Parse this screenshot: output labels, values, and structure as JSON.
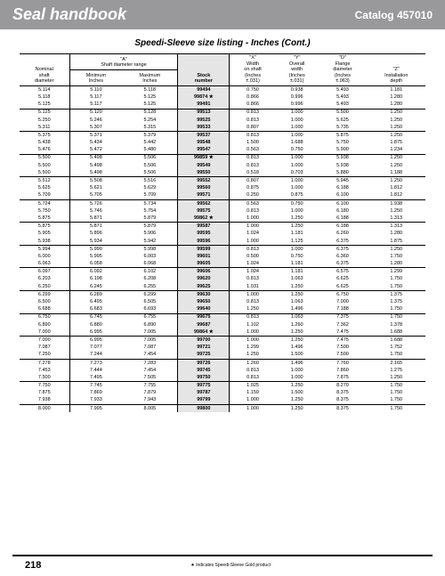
{
  "header": {
    "title": "Seal handbook",
    "catalog": "Catalog 457010"
  },
  "subtitle": "Speedi-Sleeve size listing - Inches (Cont.)",
  "footer": {
    "page": "218",
    "note": "★  Indicates Speedi-Sleeve Gold product"
  },
  "columns": {
    "nominal": "Nominal\nshaft\ndiameter",
    "range": "\"A\"\nShaft diameter range",
    "min": "Minimum\nInches",
    "max": "Maximum\nInches",
    "stock": "Stock\nnumber",
    "x": "\"X\"\nWidth\non shaft\n(Inches\n±.031)",
    "y": "\"Y\"\nOverall\nwidth\n(Inches\n±.031)",
    "d": "\"D\"\nFlange\ndiameter\n(Inches\n±.063)",
    "z": "\"Z\"\nInstallation\ndepth"
  },
  "groups": [
    [
      [
        "5.114",
        "5.110",
        "5.118",
        "99494",
        "0.750",
        "0.938",
        "5.493",
        "1.181"
      ],
      [
        "5.118",
        "5.117",
        "5.125",
        "99874 ★",
        "0.866",
        "0.996",
        "5.493",
        "1.280"
      ],
      [
        "5.125",
        "5.117",
        "5.125",
        "99491",
        "0.866",
        "0.996",
        "5.493",
        "1.280"
      ]
    ],
    [
      [
        "5.125",
        "5.120",
        "5.128",
        "99513",
        "0.813",
        "1.000",
        "5.500",
        "1.250"
      ],
      [
        "5.250",
        "5.246",
        "5.254",
        "99525",
        "0.813",
        "1.000",
        "5.625",
        "1.250"
      ],
      [
        "5.311",
        "5.307",
        "5.315",
        "99533",
        "0.807",
        "1.000",
        "5.735",
        "1.250"
      ]
    ],
    [
      [
        "5.375",
        "5.371",
        "5.379",
        "99537",
        "0.813",
        "1.000",
        "5.875",
        "1.250"
      ],
      [
        "5.438",
        "5.434",
        "5.442",
        "99548",
        "1.500",
        "1.688",
        "5.750",
        "1.875"
      ],
      [
        "5.476",
        "5.472",
        "5.480",
        "99547",
        "0.563",
        "0.750",
        "5.900",
        "1.234"
      ]
    ],
    [
      [
        "5.500",
        "5.498",
        "5.506",
        "99859 ★",
        "0.813",
        "1.000",
        "5.938",
        "1.250"
      ],
      [
        "5.500",
        "5.498",
        "5.506",
        "99549",
        "0.813",
        "1.000",
        "5.938",
        "1.250"
      ],
      [
        "5.500",
        "5.498",
        "5.506",
        "99550",
        "0.518",
        "0.703",
        "5.880",
        "1.188"
      ]
    ],
    [
      [
        "5.512",
        "5.508",
        "5.516",
        "99552",
        "0.807",
        "1.000",
        "5.945",
        "1.250"
      ],
      [
        "5.625",
        "5.621",
        "5.629",
        "99560",
        "0.875",
        "1.000",
        "6.188",
        "1.812"
      ],
      [
        "5.709",
        "5.705",
        "5.709",
        "99571",
        "0.250",
        "0.875",
        "6.100",
        "1.812"
      ]
    ],
    [
      [
        "5.724",
        "5.726",
        "5.734",
        "99562",
        "0.563",
        "0.750",
        "6.100",
        "1.938"
      ],
      [
        "5.750",
        "5.746",
        "5.754",
        "99575",
        "0.813",
        "1.000",
        "6.180",
        "1.250"
      ],
      [
        "5.875",
        "5.871",
        "5.879",
        "99862 ★",
        "1.000",
        "1.250",
        "6.188",
        "1.313"
      ]
    ],
    [
      [
        "5.875",
        "5.871",
        "5.879",
        "99587",
        "1.000",
        "1.250",
        "6.188",
        "1.313"
      ],
      [
        "5.905",
        "5.896",
        "5.906",
        "99595",
        "1.024",
        "1.181",
        "6.260",
        "1.280"
      ],
      [
        "5.938",
        "5.934",
        "5.942",
        "99596",
        "1.000",
        "1.125",
        "6.375",
        "1.875"
      ]
    ],
    [
      [
        "5.994",
        "5.990",
        "5.998",
        "99599",
        "0.813",
        "1.000",
        "6.375",
        "1.250"
      ],
      [
        "6.000",
        "5.995",
        "6.003",
        "99601",
        "0.500",
        "0.750",
        "6.360",
        "1.750"
      ],
      [
        "6.063",
        "6.058",
        "6.068",
        "99605",
        "1.024",
        "1.181",
        "6.375",
        "1.280"
      ]
    ],
    [
      [
        "6.097",
        "6.092",
        "6.102",
        "99606",
        "1.024",
        "1.181",
        "6.575",
        "1.299"
      ],
      [
        "6.203",
        "6.198",
        "6.208",
        "99620",
        "0.813",
        "1.063",
        "6.625",
        "1.750"
      ],
      [
        "6.250",
        "6.245",
        "6.255",
        "99625",
        "1.031",
        "1.250",
        "6.625",
        "1.750"
      ]
    ],
    [
      [
        "6.299",
        "6.289",
        "6.299",
        "99630",
        "1.000",
        "1.250",
        "6.750",
        "1.375"
      ],
      [
        "6.500",
        "6.495",
        "6.505",
        "99650",
        "0.813",
        "1.063",
        "7.000",
        "1.375"
      ],
      [
        "6.688",
        "6.683",
        "6.693",
        "99640",
        "1.250",
        "1.496",
        "7.188",
        "1.750"
      ]
    ],
    [
      [
        "6.750",
        "6.745",
        "6.755",
        "99675",
        "0.813",
        "1.063",
        "7.375",
        "1.750"
      ],
      [
        "6.890",
        "6.880",
        "6.890",
        "99687",
        "1.102",
        "1.260",
        "7.362",
        "1.378"
      ],
      [
        "7.000",
        "6.995",
        "7.005",
        "99864 ★",
        "1.000",
        "1.250",
        "7.475",
        "1.688"
      ]
    ],
    [
      [
        "7.000",
        "6.995",
        "7.005",
        "99700",
        "1.000",
        "1.250",
        "7.475",
        "1.688"
      ],
      [
        "7.087",
        "7.077",
        "7.087",
        "99721",
        "1.299",
        "1.496",
        "7.500",
        "1.752"
      ],
      [
        "7.250",
        "7.244",
        "7.454",
        "99725",
        "1.250",
        "1.500",
        "7.500",
        "1.750"
      ]
    ],
    [
      [
        "7.278",
        "7.273",
        "7.283",
        "99726",
        "1.260",
        "1.496",
        "7.760",
        "2.165"
      ],
      [
        "7.453",
        "7.444",
        "7.454",
        "99745",
        "0.813",
        "1.000",
        "7.860",
        "1.275"
      ],
      [
        "7.500",
        "7.495",
        "7.505",
        "99750",
        "0.813",
        "1.000",
        "7.875",
        "1.250"
      ]
    ],
    [
      [
        "7.750",
        "7.745",
        "7.755",
        "99775",
        "1.025",
        "1.250",
        "8.270",
        "1.750"
      ],
      [
        "7.875",
        "7.869",
        "7.879",
        "99787",
        "1.159",
        "1.500",
        "8.375",
        "1.750"
      ],
      [
        "7.938",
        "7.933",
        "7.943",
        "99799",
        "1.000",
        "1.250",
        "8.375",
        "1.750"
      ]
    ],
    [
      [
        "8.000",
        "7.995",
        "8.005",
        "99800",
        "1.000",
        "1.250",
        "8.375",
        "1.750"
      ]
    ]
  ]
}
